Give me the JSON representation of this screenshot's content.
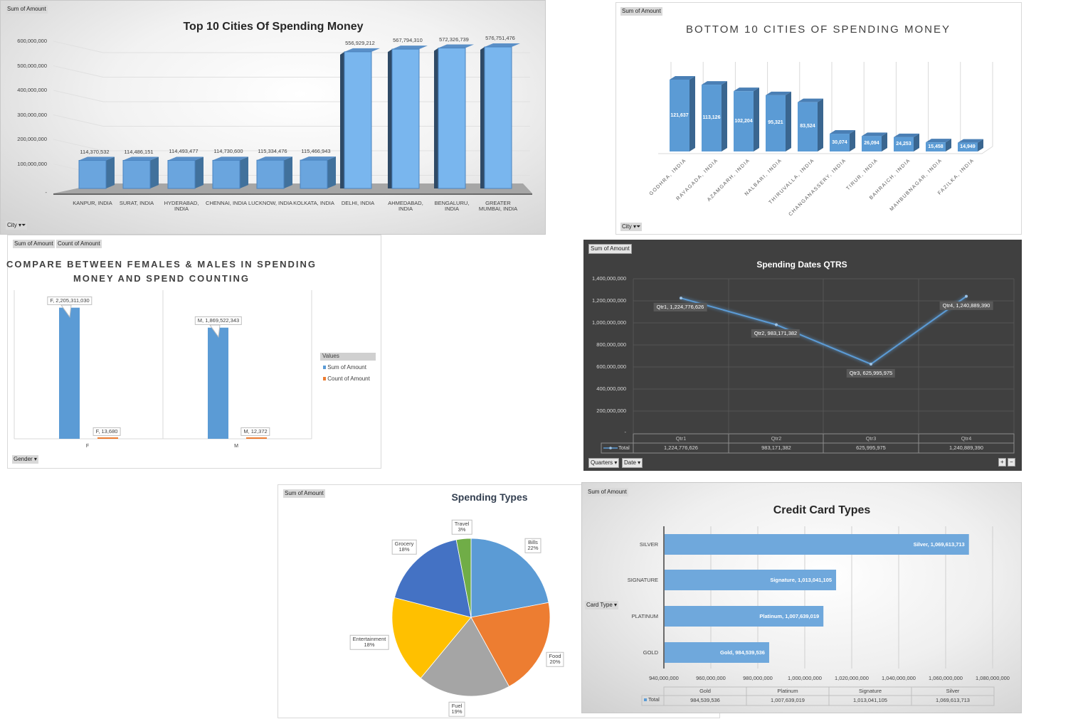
{
  "colors": {
    "blue": "#5b9bd5",
    "orange": "#ed7d31",
    "gray": "#a5a5a5",
    "yellow": "#ffc000",
    "darkblue": "#4472c4",
    "green": "#70ad47",
    "dark_bg": "#404040"
  },
  "panels": {
    "top10": {
      "field_value": "Sum of Amount",
      "field_axis": "City"
    },
    "bottom10": {
      "field_value": "Sum of Amount",
      "field_axis": "City"
    },
    "gender": {
      "field_value_1": "Sum of Amount",
      "field_value_2": "Count of Amount",
      "field_axis": "Gender",
      "legend_header": "Values"
    },
    "quarters": {
      "field_value": "Sum of Amount",
      "field_axis_1": "Quarters",
      "field_axis_2": "Date",
      "expand": "+",
      "collapse": "−"
    },
    "types": {
      "field_value": "Sum of Amount"
    },
    "cards": {
      "field_value": "Sum of Amount",
      "field_axis": "Card Type"
    }
  },
  "chart_data": [
    {
      "type": "bar",
      "title": "Top 10 Cities Of Spending Money",
      "categories": [
        "KANPUR, INDIA",
        "SURAT, INDIA",
        "HYDERABAD, INDIA",
        "CHENNAI, INDIA",
        "LUCKNOW, INDIA",
        "KOLKATA, INDIA",
        "DELHI, INDIA",
        "AHMEDABAD, INDIA",
        "BENGALURU, INDIA",
        "GREATER MUMBAI, INDIA"
      ],
      "values": [
        114370532,
        114486151,
        114493477,
        114730600,
        115334476,
        115466943,
        556929212,
        567794310,
        572326739,
        576751476
      ],
      "data_labels": [
        "114,370,532",
        "114,486,151",
        "114,493,477",
        "114,730,600",
        "115,334,476",
        "115,466,943",
        "556,929,212",
        "567,794,310",
        "572,326,739",
        "576,751,476"
      ],
      "ylim": [
        0,
        600000000
      ],
      "yticks": [
        "-",
        "100,000,000",
        "200,000,000",
        "300,000,000",
        "400,000,000",
        "500,000,000",
        "600,000,000"
      ],
      "grid": true,
      "style": "3d"
    },
    {
      "type": "bar",
      "title": "BOTTOM 10 CITIES OF SPENDING MONEY",
      "categories": [
        "GODHRA, INDIA",
        "RAYAGADA, INDIA",
        "AZAMGARH, INDIA",
        "NALBARI, INDIA",
        "THIRUVALLA, INDIA",
        "CHANGANASSERY, INDIA",
        "TIRUR, INDIA",
        "BAHRAICH, INDIA",
        "MAHBUBNAGAR, INDIA",
        "FAZILKA, INDIA"
      ],
      "values": [
        121637,
        113126,
        102204,
        95321,
        83524,
        30074,
        26094,
        24253,
        15458,
        14949
      ],
      "data_labels": [
        "121,637",
        "113,126",
        "102,204",
        "95,321",
        "83,524",
        "30,074",
        "26,094",
        "24,253",
        "15,458",
        "14,949"
      ],
      "grid": true,
      "style": "3d"
    },
    {
      "type": "bar",
      "title": "COMPARE BETWEEN FEMALES & MALES IN SPENDING MONEY AND SPEND COUNTING",
      "title_lines": [
        "COMPARE BETWEEN FEMALES & MALES IN SPENDING",
        "MONEY AND SPEND COUNTING"
      ],
      "categories": [
        "F",
        "M"
      ],
      "series": [
        {
          "name": "Sum of Amount",
          "values": [
            2205311030,
            1869522343
          ],
          "data_labels": [
            "F,  2,205,311,030",
            "M,  1,869,522,343"
          ]
        },
        {
          "name": "Count of Amount",
          "values": [
            13680,
            12372
          ],
          "data_labels": [
            "F,  13,680",
            "M,  12,372"
          ]
        }
      ],
      "ylim": [
        0,
        2500000000
      ],
      "legend": "right"
    },
    {
      "type": "line",
      "title": "Spending Dates QTRS",
      "categories": [
        "Qtr1",
        "Qtr2",
        "Qtr3",
        "Qtr4"
      ],
      "series": [
        {
          "name": "Total",
          "values": [
            1224776626,
            983171382,
            625995975,
            1240889390
          ],
          "data_labels": [
            "Qtr1,  1,224,776,626",
            "Qtr2,  983,171,382",
            "Qtr3,  625,995,975",
            "Qtr4,  1,240,889,390"
          ],
          "table_values": [
            "1,224,776,626",
            "983,171,382",
            "625,995,975",
            "1,240,889,390"
          ]
        }
      ],
      "ylim": [
        0,
        1400000000
      ],
      "yticks": [
        "-",
        "200,000,000",
        "400,000,000",
        "600,000,000",
        "800,000,000",
        "1,000,000,000",
        "1,200,000,000",
        "1,400,000,000"
      ],
      "grid": true,
      "data_table": true
    },
    {
      "type": "pie",
      "title": "Spending Types",
      "categories": [
        "Bills",
        "Food",
        "Fuel",
        "Entertainment",
        "Grocery",
        "Travel"
      ],
      "values": [
        22,
        20,
        19,
        18,
        18,
        3
      ],
      "labels": [
        "22%",
        "20%",
        "19%",
        "18%",
        "18%",
        "3%"
      ],
      "colors": [
        "#5b9bd5",
        "#ed7d31",
        "#a5a5a5",
        "#ffc000",
        "#4472c4",
        "#70ad47"
      ]
    },
    {
      "type": "bar",
      "orientation": "horizontal",
      "title": "Credit Card Types",
      "categories": [
        "SILVER",
        "SIGNATURE",
        "PLATINUM",
        "GOLD"
      ],
      "values": [
        1069613713,
        1013041105,
        1007639019,
        984539536
      ],
      "data_labels": [
        "Silver,  1,069,613,713",
        "Signature,  1,013,041,105",
        "Platinum,  1,007,639,019",
        "Gold,  984,539,536"
      ],
      "xlim": [
        940000000,
        1080000000
      ],
      "xticks": [
        "940,000,000",
        "960,000,000",
        "980,000,000",
        "1,000,000,000",
        "1,020,000,000",
        "1,040,000,000",
        "1,060,000,000",
        "1,080,000,000"
      ],
      "table": {
        "series": "Total",
        "headers": [
          "Gold",
          "Platinum",
          "Signature",
          "Silver"
        ],
        "values": [
          "984,539,536",
          "1,007,639,019",
          "1,013,041,105",
          "1,069,613,713"
        ]
      },
      "grid": true
    }
  ]
}
